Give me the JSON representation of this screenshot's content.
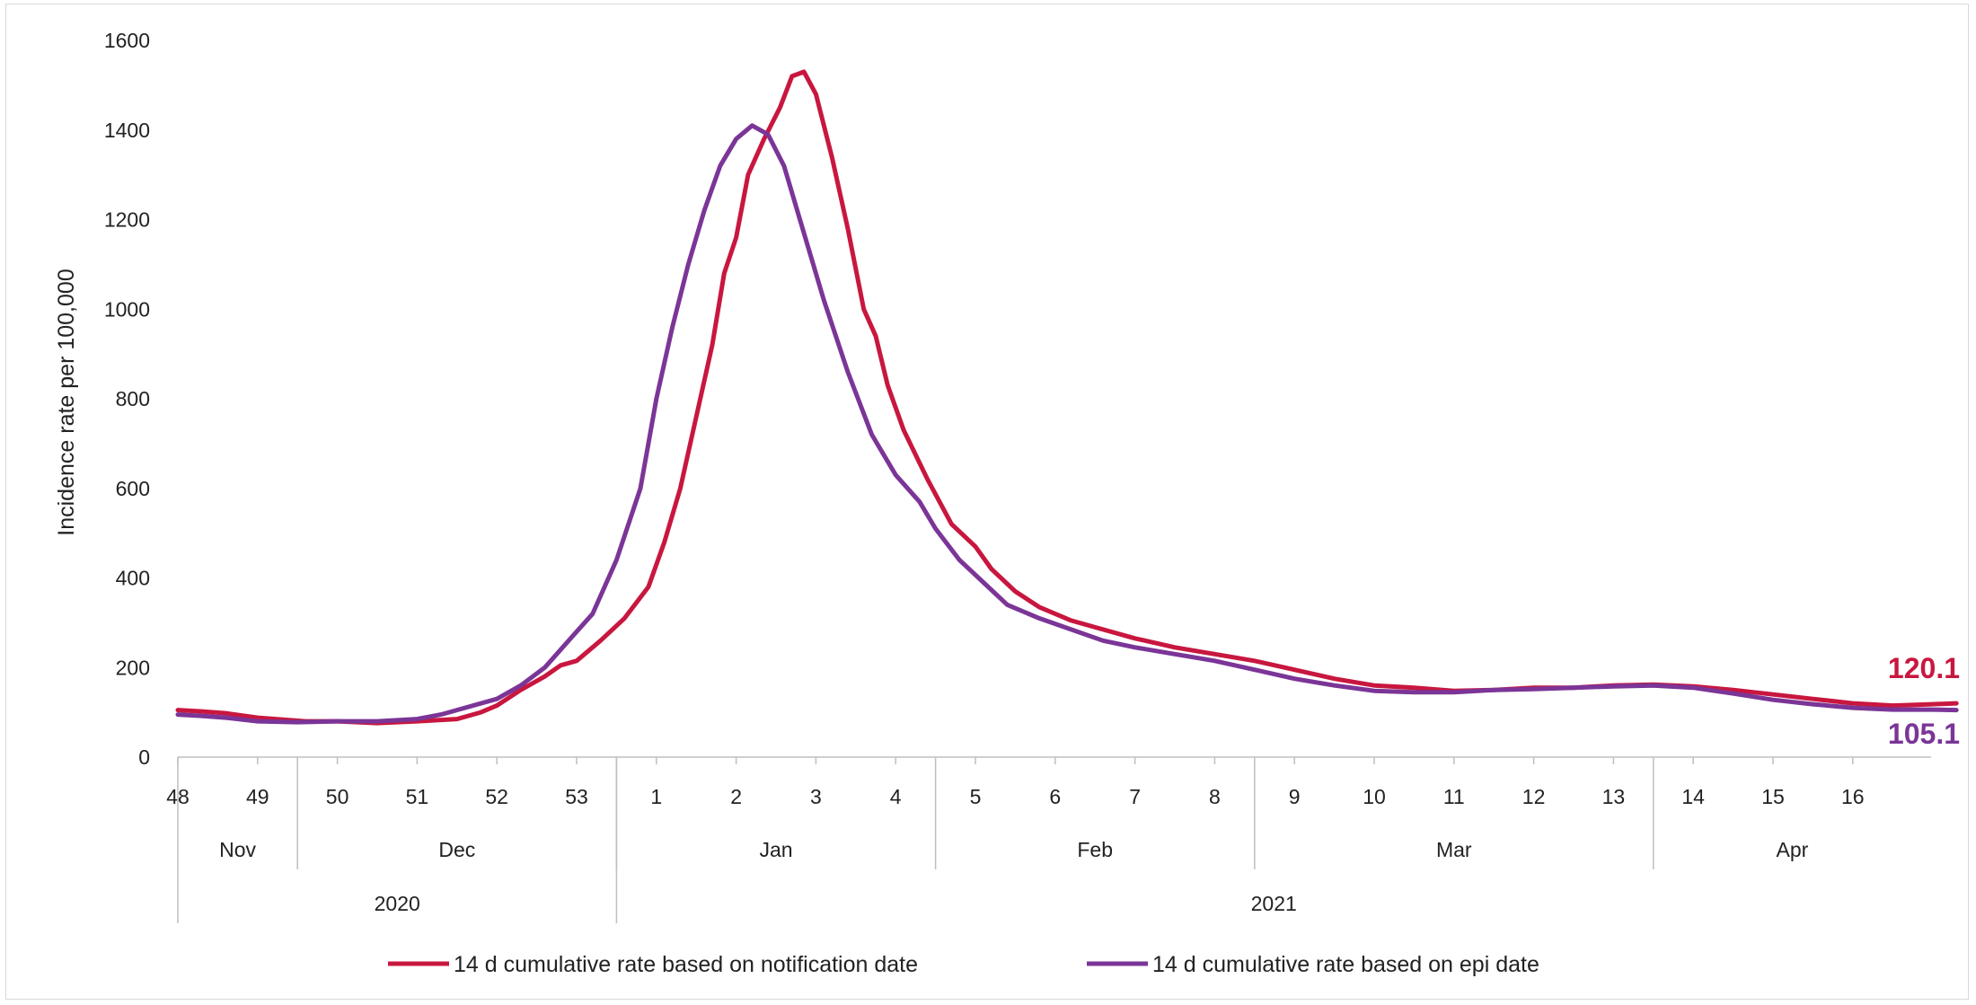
{
  "chart_data": {
    "type": "line",
    "ylabel": "Incidence rate per 100,000",
    "ylim": [
      0,
      1600
    ],
    "y_ticks": [
      "0",
      "200",
      "400",
      "600",
      "800",
      "1000",
      "1200",
      "1400",
      "1600"
    ],
    "x_unit": "ISO week",
    "weeks": [
      "48",
      "49",
      "50",
      "51",
      "52",
      "53",
      "1",
      "2",
      "3",
      "4",
      "5",
      "6",
      "7",
      "8",
      "9",
      "10",
      "11",
      "12",
      "13",
      "14",
      "15",
      "16"
    ],
    "months": [
      {
        "label": "Nov",
        "weeks": [
          "48",
          "49"
        ]
      },
      {
        "label": "Dec",
        "weeks": [
          "50",
          "51",
          "52",
          "53"
        ]
      },
      {
        "label": "Jan",
        "weeks": [
          "1",
          "2",
          "3",
          "4"
        ]
      },
      {
        "label": "Feb",
        "weeks": [
          "5",
          "6",
          "7",
          "8"
        ]
      },
      {
        "label": "Mar",
        "weeks": [
          "9",
          "10",
          "11",
          "12",
          "13"
        ]
      },
      {
        "label": "Apr",
        "weeks": [
          "14",
          "15",
          "16"
        ]
      }
    ],
    "years": [
      {
        "label": "2020",
        "weeks": [
          "48",
          "49",
          "50",
          "51",
          "52",
          "53"
        ]
      },
      {
        "label": "2021",
        "weeks": [
          "1",
          "2",
          "3",
          "4",
          "5",
          "6",
          "7",
          "8",
          "9",
          "10",
          "11",
          "12",
          "13",
          "14",
          "15",
          "16"
        ]
      }
    ],
    "series": [
      {
        "name": "14 d cumulative rate  based on notification date",
        "color": "#c8173f",
        "end_label": "120.1",
        "points": [
          [
            0,
            105
          ],
          [
            0.3,
            102
          ],
          [
            0.6,
            98
          ],
          [
            1.0,
            88
          ],
          [
            1.3,
            84
          ],
          [
            1.6,
            80
          ],
          [
            2.0,
            80
          ],
          [
            2.5,
            76
          ],
          [
            3.0,
            80
          ],
          [
            3.5,
            85
          ],
          [
            3.8,
            100
          ],
          [
            4.0,
            115
          ],
          [
            4.3,
            150
          ],
          [
            4.6,
            180
          ],
          [
            4.8,
            205
          ],
          [
            5.0,
            215
          ],
          [
            5.3,
            260
          ],
          [
            5.6,
            310
          ],
          [
            5.9,
            380
          ],
          [
            6.1,
            480
          ],
          [
            6.3,
            600
          ],
          [
            6.5,
            760
          ],
          [
            6.7,
            920
          ],
          [
            6.85,
            1080
          ],
          [
            7.0,
            1160
          ],
          [
            7.15,
            1300
          ],
          [
            7.35,
            1380
          ],
          [
            7.55,
            1450
          ],
          [
            7.7,
            1520
          ],
          [
            7.85,
            1530
          ],
          [
            8.0,
            1480
          ],
          [
            8.2,
            1340
          ],
          [
            8.4,
            1180
          ],
          [
            8.6,
            1000
          ],
          [
            8.75,
            940
          ],
          [
            8.9,
            830
          ],
          [
            9.1,
            730
          ],
          [
            9.4,
            620
          ],
          [
            9.7,
            520
          ],
          [
            10.0,
            470
          ],
          [
            10.2,
            420
          ],
          [
            10.5,
            370
          ],
          [
            10.8,
            335
          ],
          [
            11.2,
            305
          ],
          [
            11.5,
            290
          ],
          [
            12.0,
            265
          ],
          [
            12.5,
            245
          ],
          [
            13.0,
            230
          ],
          [
            13.5,
            215
          ],
          [
            14.0,
            195
          ],
          [
            14.5,
            175
          ],
          [
            15.0,
            160
          ],
          [
            15.5,
            155
          ],
          [
            16.0,
            148
          ],
          [
            16.5,
            150
          ],
          [
            17.0,
            155
          ],
          [
            17.5,
            155
          ],
          [
            18.0,
            160
          ],
          [
            18.5,
            162
          ],
          [
            19.0,
            158
          ],
          [
            19.5,
            150
          ],
          [
            20.0,
            140
          ],
          [
            20.5,
            130
          ],
          [
            21.0,
            120
          ],
          [
            21.5,
            115
          ],
          [
            22.0,
            118
          ],
          [
            22.3,
            120.1
          ]
        ]
      },
      {
        "name": "14 d cumulative rate based on epi date",
        "color": "#7b3597",
        "end_label": "105.1",
        "points": [
          [
            0,
            95
          ],
          [
            0.3,
            92
          ],
          [
            0.6,
            88
          ],
          [
            1.0,
            80
          ],
          [
            1.5,
            78
          ],
          [
            2.0,
            80
          ],
          [
            2.5,
            80
          ],
          [
            3.0,
            85
          ],
          [
            3.3,
            95
          ],
          [
            3.6,
            110
          ],
          [
            4.0,
            130
          ],
          [
            4.3,
            160
          ],
          [
            4.6,
            200
          ],
          [
            4.9,
            260
          ],
          [
            5.2,
            320
          ],
          [
            5.5,
            440
          ],
          [
            5.8,
            600
          ],
          [
            6.0,
            800
          ],
          [
            6.2,
            960
          ],
          [
            6.4,
            1100
          ],
          [
            6.6,
            1220
          ],
          [
            6.8,
            1320
          ],
          [
            7.0,
            1380
          ],
          [
            7.2,
            1410
          ],
          [
            7.4,
            1390
          ],
          [
            7.6,
            1320
          ],
          [
            7.8,
            1200
          ],
          [
            8.1,
            1020
          ],
          [
            8.4,
            860
          ],
          [
            8.7,
            720
          ],
          [
            9.0,
            630
          ],
          [
            9.3,
            570
          ],
          [
            9.5,
            510
          ],
          [
            9.8,
            440
          ],
          [
            10.1,
            390
          ],
          [
            10.4,
            340
          ],
          [
            10.8,
            310
          ],
          [
            11.2,
            285
          ],
          [
            11.6,
            260
          ],
          [
            12.0,
            245
          ],
          [
            12.5,
            230
          ],
          [
            13.0,
            215
          ],
          [
            13.5,
            195
          ],
          [
            14.0,
            175
          ],
          [
            14.5,
            160
          ],
          [
            15.0,
            148
          ],
          [
            15.5,
            145
          ],
          [
            16.0,
            145
          ],
          [
            16.5,
            150
          ],
          [
            17.0,
            152
          ],
          [
            17.5,
            155
          ],
          [
            18.0,
            158
          ],
          [
            18.5,
            160
          ],
          [
            19.0,
            155
          ],
          [
            19.5,
            142
          ],
          [
            20.0,
            128
          ],
          [
            20.5,
            118
          ],
          [
            21.0,
            110
          ],
          [
            21.5,
            106
          ],
          [
            22.0,
            106
          ],
          [
            22.3,
            105.1
          ]
        ]
      }
    ],
    "legend_position": "bottom"
  }
}
